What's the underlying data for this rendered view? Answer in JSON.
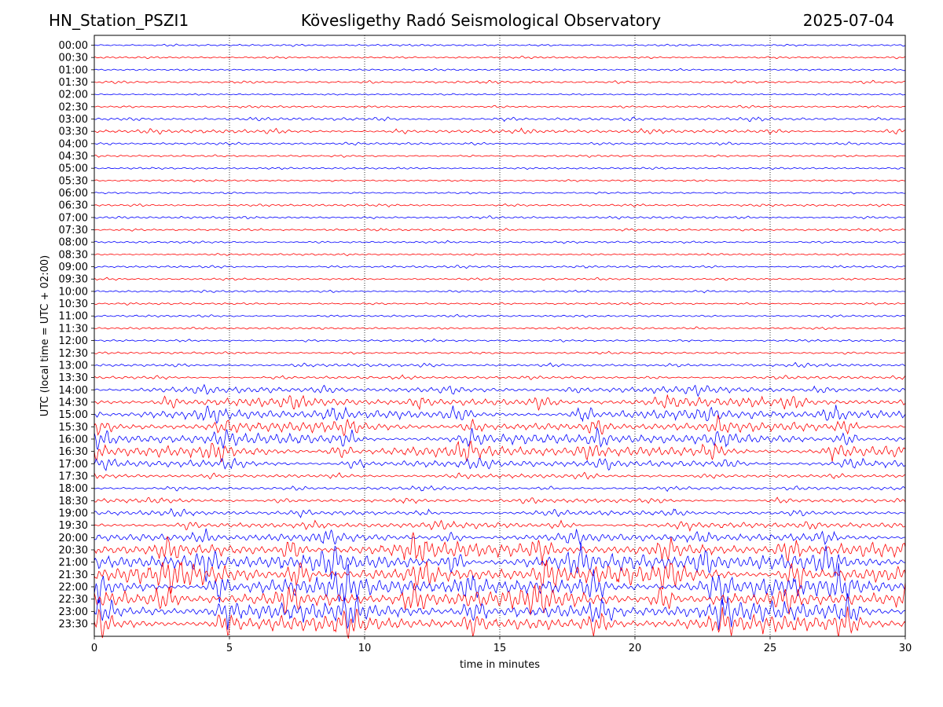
{
  "header": {
    "station": "HN_Station_PSZI1",
    "observatory": "Kövesligethy Radó Seismological Observatory",
    "date": "2025-07-04"
  },
  "chart_data": {
    "type": "line",
    "title": "Kövesligethy Radó Seismological Observatory",
    "xlabel": "time in minutes",
    "ylabel": "UTC (local time = UTC + 02:00)",
    "xlim": [
      0,
      30
    ],
    "x_ticks": [
      "0",
      "5",
      "10",
      "15",
      "20",
      "25",
      "30"
    ],
    "vertical_grid_at": [
      5,
      10,
      15,
      20,
      25
    ],
    "grid": "dotted vertical lines",
    "colors": {
      "even_rows": "#0000ff",
      "odd_rows": "#ff0000"
    },
    "rows": [
      {
        "label": "00:00",
        "activity": 0.05
      },
      {
        "label": "00:30",
        "activity": 0.05
      },
      {
        "label": "01:00",
        "activity": 0.04
      },
      {
        "label": "01:30",
        "activity": 0.08
      },
      {
        "label": "02:00",
        "activity": 0.03
      },
      {
        "label": "02:30",
        "activity": 0.06
      },
      {
        "label": "03:00",
        "activity": 0.12
      },
      {
        "label": "03:30",
        "activity": 0.18
      },
      {
        "label": "04:00",
        "activity": 0.08
      },
      {
        "label": "04:30",
        "activity": 0.05
      },
      {
        "label": "05:00",
        "activity": 0.05
      },
      {
        "label": "05:30",
        "activity": 0.04
      },
      {
        "label": "06:00",
        "activity": 0.04
      },
      {
        "label": "06:30",
        "activity": 0.07
      },
      {
        "label": "07:00",
        "activity": 0.08
      },
      {
        "label": "07:30",
        "activity": 0.07
      },
      {
        "label": "08:00",
        "activity": 0.06
      },
      {
        "label": "08:30",
        "activity": 0.05
      },
      {
        "label": "09:00",
        "activity": 0.07
      },
      {
        "label": "09:30",
        "activity": 0.06
      },
      {
        "label": "10:00",
        "activity": 0.06
      },
      {
        "label": "10:30",
        "activity": 0.05
      },
      {
        "label": "11:00",
        "activity": 0.06
      },
      {
        "label": "11:30",
        "activity": 0.06
      },
      {
        "label": "12:00",
        "activity": 0.06
      },
      {
        "label": "12:30",
        "activity": 0.06
      },
      {
        "label": "13:00",
        "activity": 0.12
      },
      {
        "label": "13:30",
        "activity": 0.12
      },
      {
        "label": "14:00",
        "activity": 0.35
      },
      {
        "label": "14:30",
        "activity": 0.55
      },
      {
        "label": "15:00",
        "activity": 0.65
      },
      {
        "label": "15:30",
        "activity": 0.6
      },
      {
        "label": "16:00",
        "activity": 0.7
      },
      {
        "label": "16:30",
        "activity": 0.75
      },
      {
        "label": "17:00",
        "activity": 0.45
      },
      {
        "label": "17:30",
        "activity": 0.2
      },
      {
        "label": "18:00",
        "activity": 0.15
      },
      {
        "label": "18:30",
        "activity": 0.2
      },
      {
        "label": "19:00",
        "activity": 0.25
      },
      {
        "label": "19:30",
        "activity": 0.35
      },
      {
        "label": "20:00",
        "activity": 0.55
      },
      {
        "label": "20:30",
        "activity": 1.0
      },
      {
        "label": "21:00",
        "activity": 1.15
      },
      {
        "label": "21:30",
        "activity": 1.2
      },
      {
        "label": "22:00",
        "activity": 1.25
      },
      {
        "label": "22:30",
        "activity": 1.2
      },
      {
        "label": "23:00",
        "activity": 1.15
      },
      {
        "label": "23:30",
        "activity": 1.05
      }
    ]
  }
}
